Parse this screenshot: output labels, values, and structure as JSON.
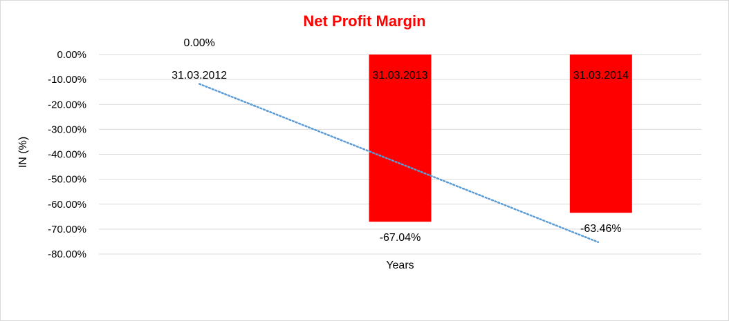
{
  "chart_data": {
    "type": "bar",
    "title": "Net Profit Margin",
    "xlabel": "Years",
    "ylabel": "IN (%)",
    "categories": [
      "31.03.2012",
      "31.03.2013",
      "31.03.2014"
    ],
    "values": [
      0.0,
      -67.04,
      -63.46
    ],
    "data_labels": [
      "0.00%",
      "-67.04%",
      "-63.46%"
    ],
    "yticks": [
      0,
      -10,
      -20,
      -30,
      -40,
      -50,
      -60,
      -70,
      -80
    ],
    "ytick_labels": [
      "0.00%",
      "-10.00%",
      "-20.00%",
      "-30.00%",
      "-40.00%",
      "-50.00%",
      "-60.00%",
      "-70.00%",
      "-80.00%"
    ],
    "ylim": [
      -80,
      0
    ],
    "grid": true,
    "legend": "none",
    "trendline": {
      "type": "linear",
      "style": "dotted",
      "color": "#5b9bd5"
    },
    "colors": {
      "bar": "#ff0000",
      "title": "#ff0000",
      "grid": "#d9d9d9"
    }
  }
}
